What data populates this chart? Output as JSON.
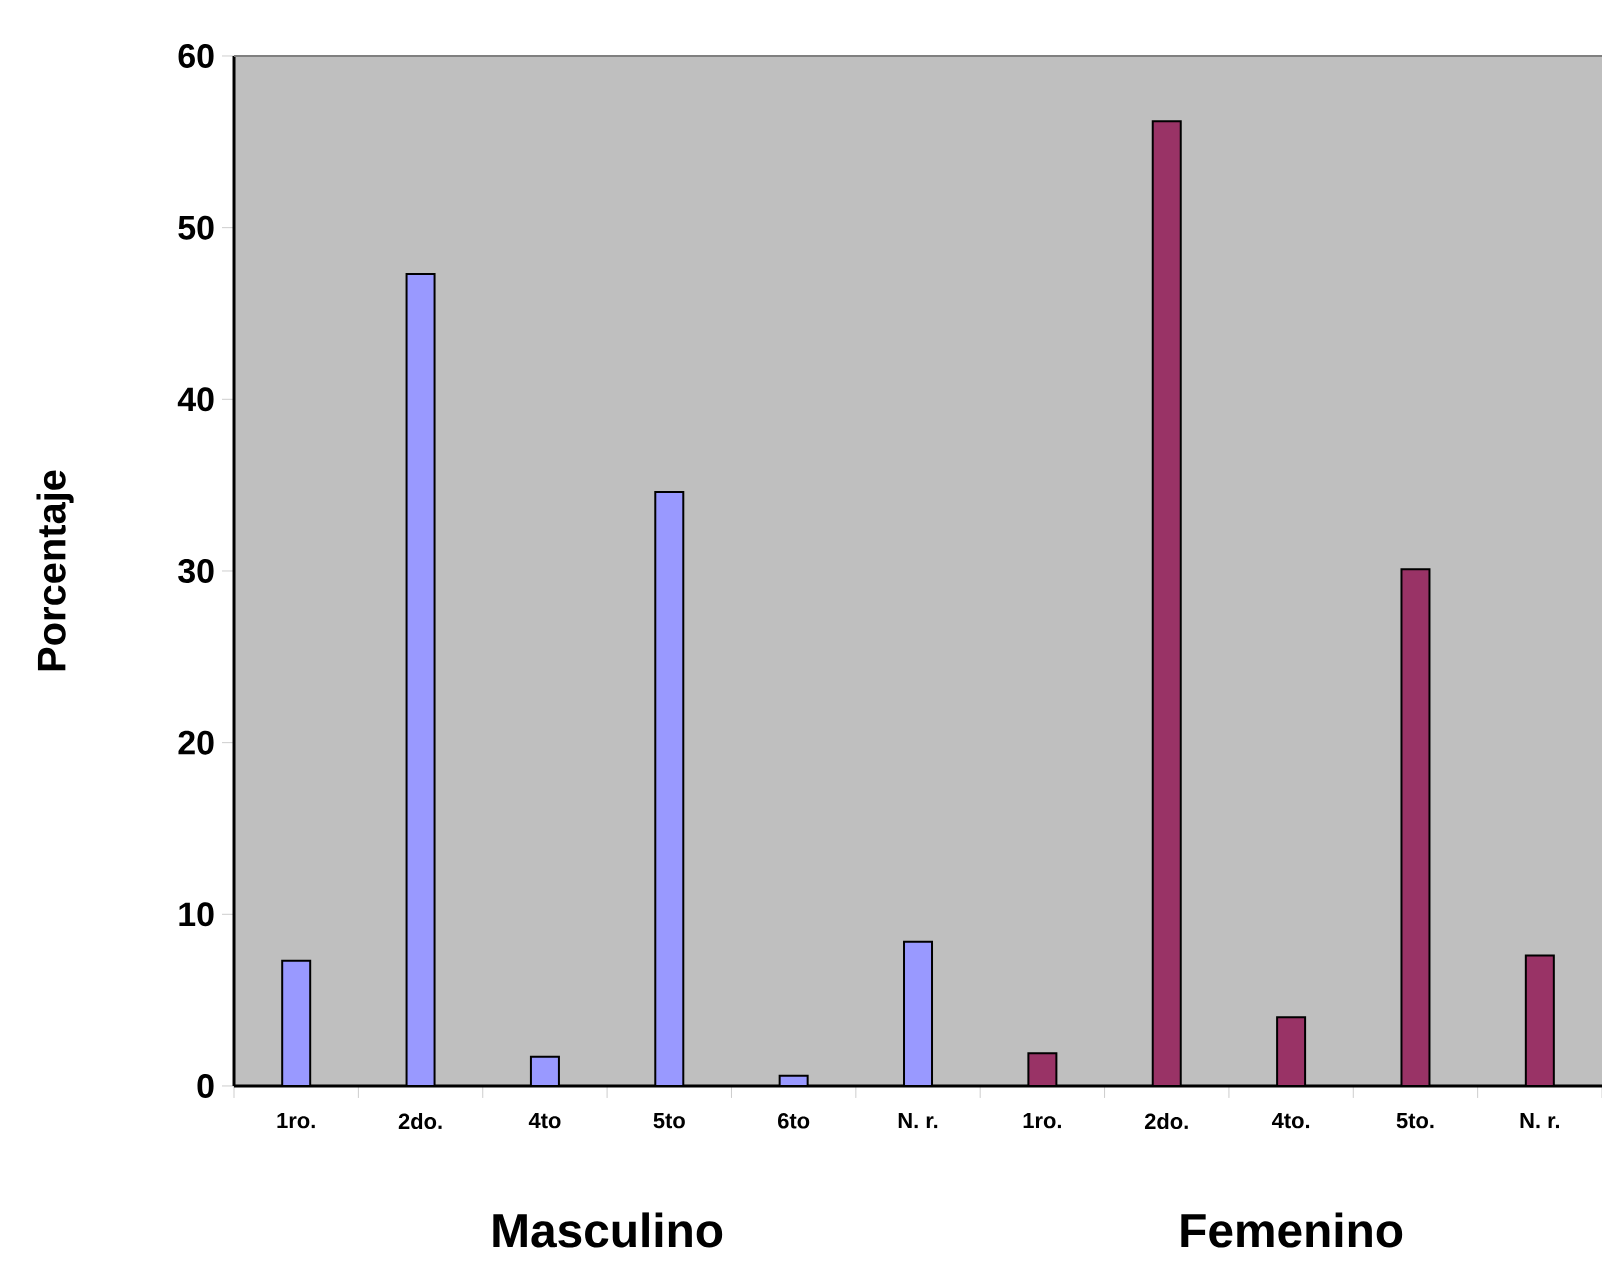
{
  "chart_data": {
    "type": "bar",
    "ylabel": "Porcentaje",
    "categories": [
      "1ro.",
      "2do.",
      "4to",
      "5to",
      "6to",
      "N. r.",
      "1ro.",
      "2do.",
      "4to.",
      "5to.",
      "N. r."
    ],
    "series": [
      {
        "name": "Masculino",
        "color": "#9999ff",
        "values": [
          7.3,
          47.3,
          1.7,
          34.6,
          0.6,
          8.4,
          null,
          null,
          null,
          null,
          null
        ]
      },
      {
        "name": "Femenino",
        "color": "#993366",
        "values": [
          null,
          null,
          null,
          null,
          null,
          null,
          1.9,
          56.2,
          4.0,
          30.1,
          7.6
        ]
      }
    ],
    "ylim": [
      0,
      60
    ],
    "yticks": [
      0,
      10,
      20,
      30,
      40,
      50,
      60
    ]
  }
}
